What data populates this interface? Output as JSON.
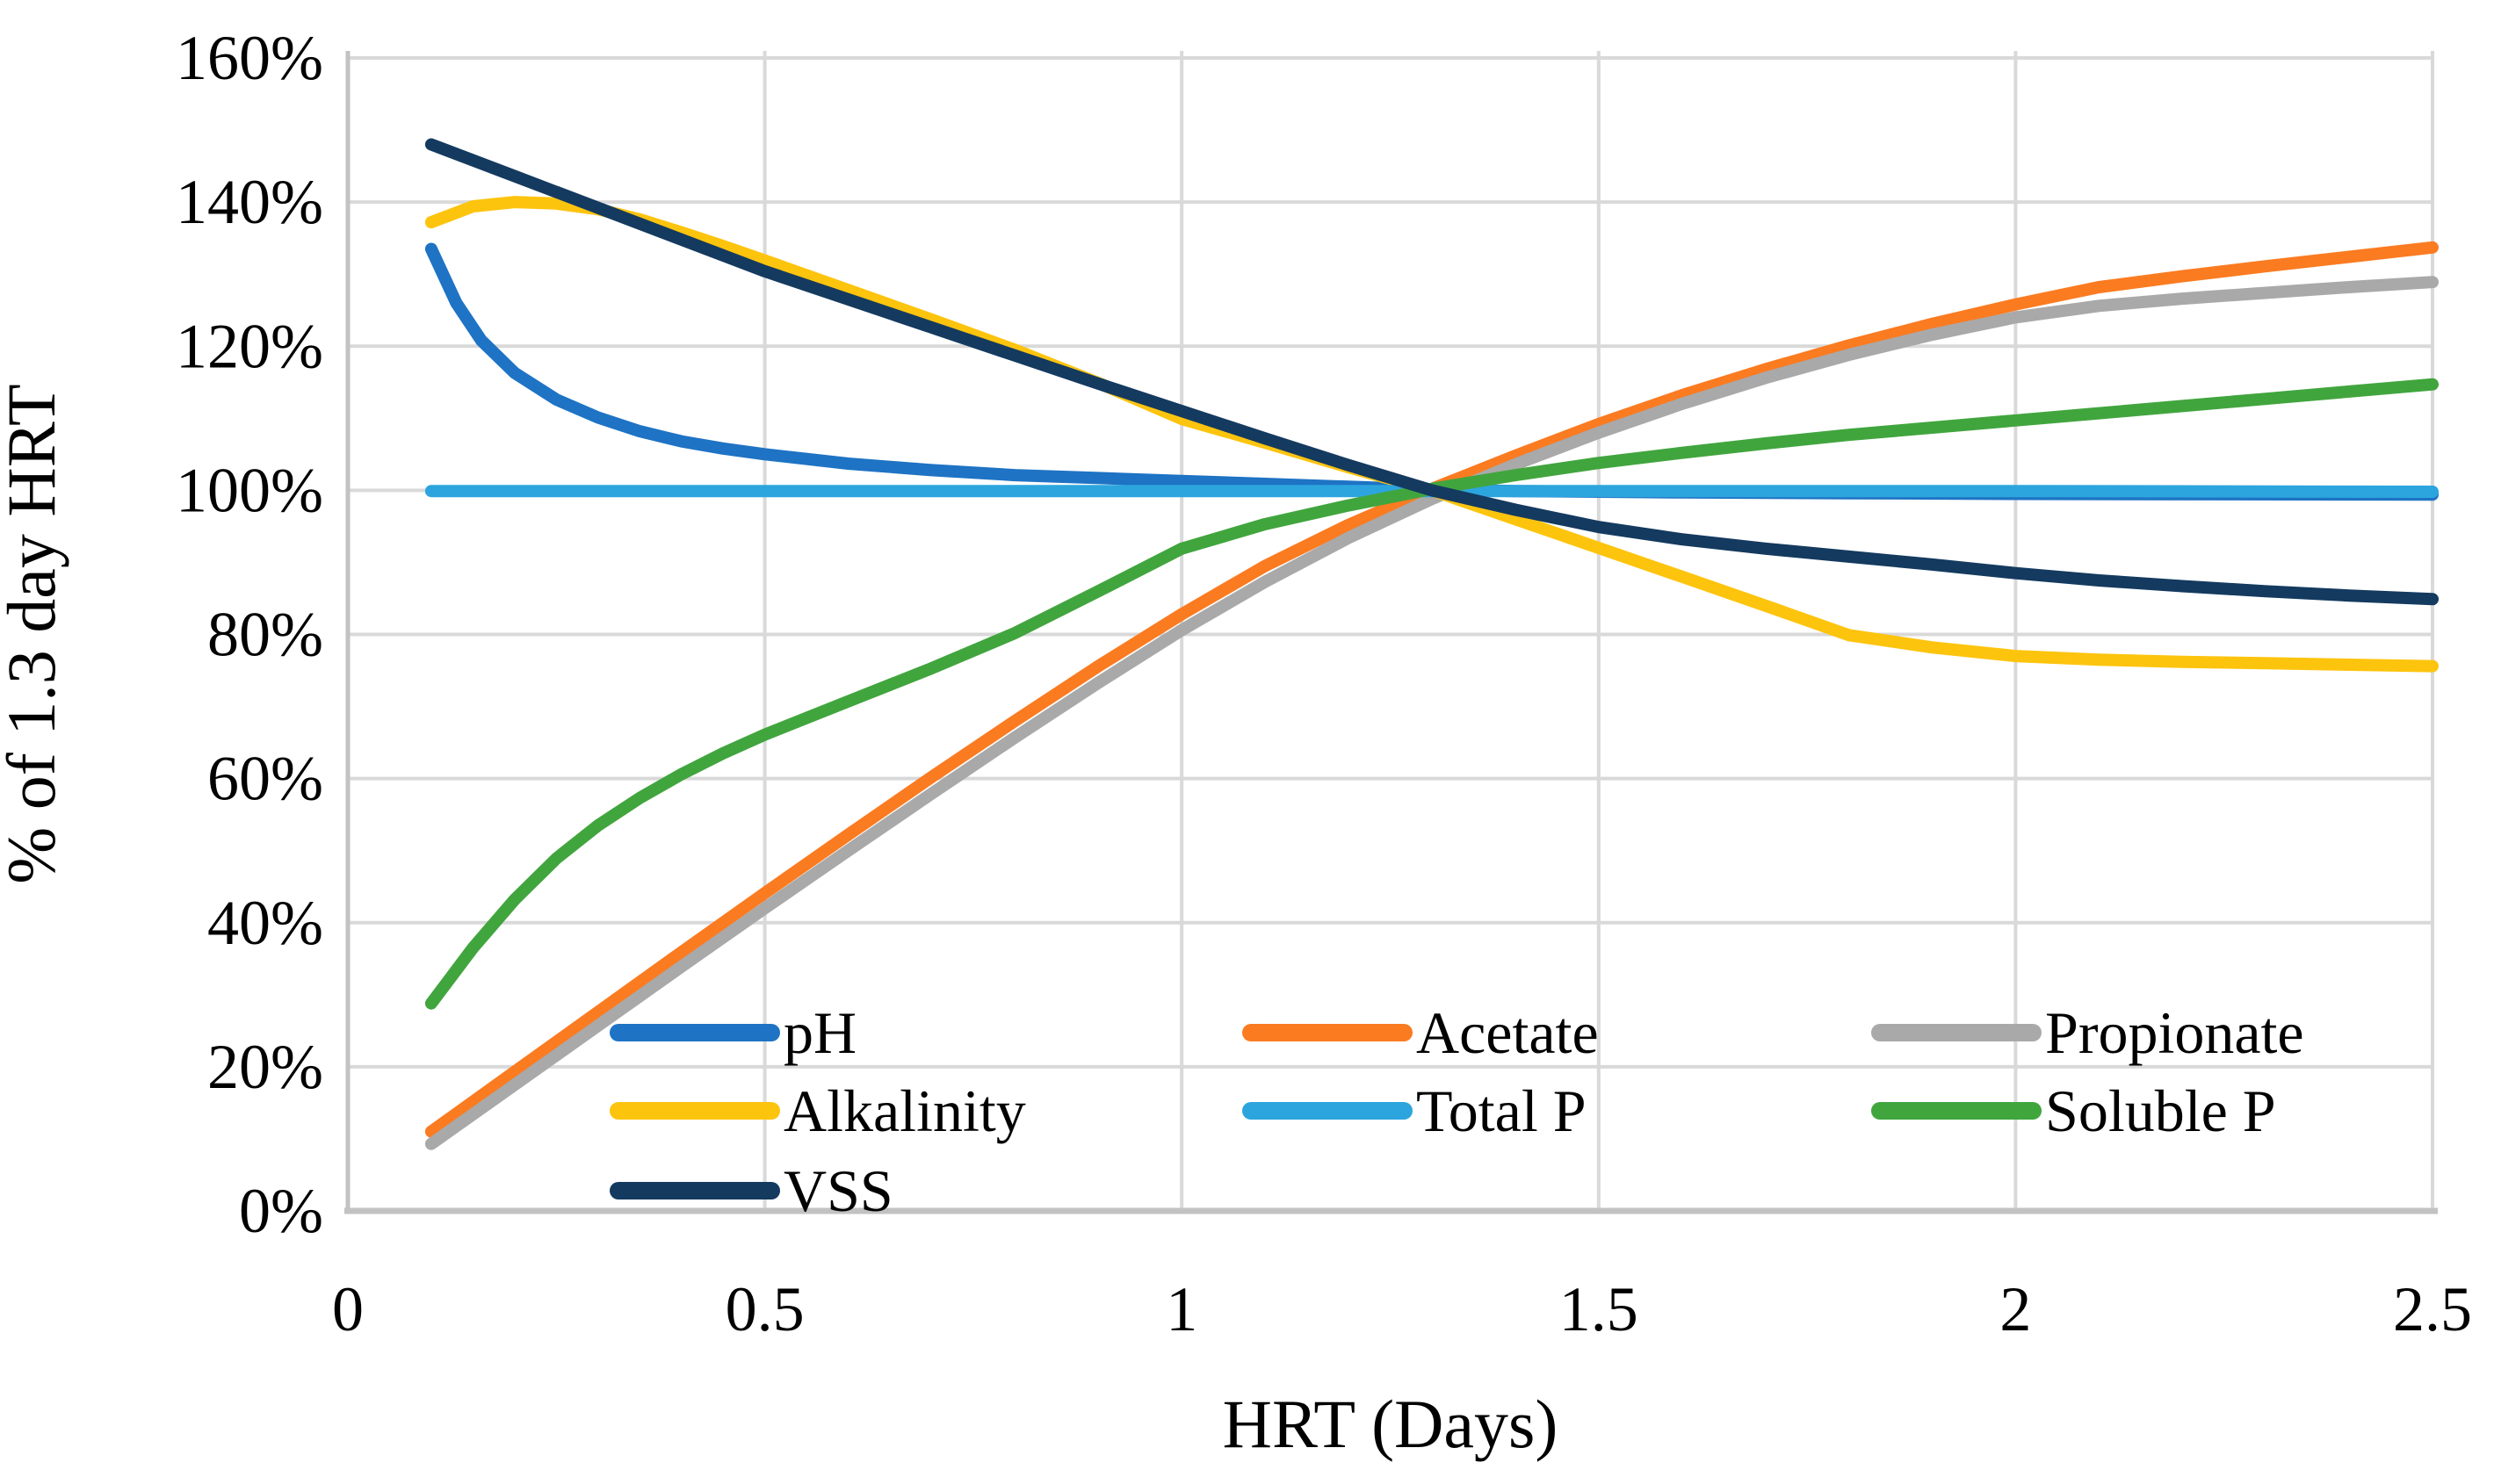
{
  "figure": {
    "background": "#FFFFFF",
    "grid_color": "#D9D9D9",
    "axis_line_color": "#C2C2C2",
    "text_color": "#000000"
  },
  "chart_data": {
    "type": "line",
    "title": "",
    "xlabel": "HRT (Days)",
    "ylabel": "% of 1.3 day HRT",
    "xlim": [
      0,
      2.5
    ],
    "ylim": [
      0,
      160
    ],
    "grid": true,
    "legend_position": "inside-bottom",
    "x_ticks": [
      0,
      0.5,
      1,
      1.5,
      2,
      2.5
    ],
    "x_tick_labels": [
      "0",
      "0.5",
      "1",
      "1.5",
      "2",
      "2.5"
    ],
    "y_ticks": [
      0,
      20,
      40,
      60,
      80,
      100,
      120,
      140,
      160
    ],
    "y_tick_labels": [
      "0%",
      "20%",
      "40%",
      "60%",
      "80%",
      "100%",
      "120%",
      "140%",
      "160%"
    ],
    "series": [
      {
        "name": "pH",
        "color": "#1E73C4",
        "points": [
          [
            0.1,
            133.5
          ],
          [
            0.13,
            126.0
          ],
          [
            0.16,
            120.8
          ],
          [
            0.2,
            116.3
          ],
          [
            0.25,
            112.6
          ],
          [
            0.3,
            110.1
          ],
          [
            0.35,
            108.2
          ],
          [
            0.4,
            106.8
          ],
          [
            0.45,
            105.8
          ],
          [
            0.5,
            105.0
          ],
          [
            0.6,
            103.7
          ],
          [
            0.7,
            102.8
          ],
          [
            0.8,
            102.1
          ],
          [
            0.9,
            101.7
          ],
          [
            1.0,
            101.3
          ],
          [
            1.1,
            100.9
          ],
          [
            1.2,
            100.5
          ],
          [
            1.3,
            100.1
          ],
          [
            1.4,
            99.9
          ],
          [
            1.6,
            99.7
          ],
          [
            1.8,
            99.6
          ],
          [
            2.0,
            99.5
          ],
          [
            2.25,
            99.45
          ],
          [
            2.5,
            99.4
          ]
        ]
      },
      {
        "name": "Acetate",
        "color": "#FB7B21",
        "points": [
          [
            0.1,
            11.0
          ],
          [
            0.2,
            19.3
          ],
          [
            0.3,
            27.6
          ],
          [
            0.4,
            35.9
          ],
          [
            0.5,
            44.1
          ],
          [
            0.6,
            52.2
          ],
          [
            0.7,
            60.2
          ],
          [
            0.8,
            68.0
          ],
          [
            0.9,
            75.6
          ],
          [
            1.0,
            82.8
          ],
          [
            1.1,
            89.5
          ],
          [
            1.2,
            95.2
          ],
          [
            1.3,
            100.2
          ],
          [
            1.4,
            104.8
          ],
          [
            1.5,
            109.2
          ],
          [
            1.6,
            113.2
          ],
          [
            1.7,
            116.8
          ],
          [
            1.8,
            120.1
          ],
          [
            1.9,
            123.1
          ],
          [
            2.0,
            125.8
          ],
          [
            2.1,
            128.2
          ],
          [
            2.2,
            129.7
          ],
          [
            2.3,
            131.1
          ],
          [
            2.4,
            132.4
          ],
          [
            2.5,
            133.7
          ]
        ]
      },
      {
        "name": "Propionate",
        "color": "#A9A9A9",
        "points": [
          [
            0.1,
            9.3
          ],
          [
            0.2,
            17.5
          ],
          [
            0.3,
            25.7
          ],
          [
            0.4,
            33.9
          ],
          [
            0.5,
            42.0
          ],
          [
            0.6,
            50.0
          ],
          [
            0.7,
            57.9
          ],
          [
            0.8,
            65.7
          ],
          [
            0.9,
            73.3
          ],
          [
            1.0,
            80.6
          ],
          [
            1.1,
            87.3
          ],
          [
            1.2,
            93.4
          ],
          [
            1.3,
            98.8
          ],
          [
            1.4,
            103.6
          ],
          [
            1.5,
            108.0
          ],
          [
            1.6,
            112.0
          ],
          [
            1.7,
            115.6
          ],
          [
            1.8,
            118.8
          ],
          [
            1.9,
            121.6
          ],
          [
            2.0,
            124.0
          ],
          [
            2.1,
            125.6
          ],
          [
            2.2,
            126.6
          ],
          [
            2.3,
            127.4
          ],
          [
            2.4,
            128.2
          ],
          [
            2.5,
            128.9
          ]
        ]
      },
      {
        "name": "Alkalinity",
        "color": "#FDC40E",
        "points": [
          [
            0.1,
            137.2
          ],
          [
            0.15,
            139.4
          ],
          [
            0.2,
            140.0
          ],
          [
            0.25,
            139.8
          ],
          [
            0.3,
            139.0
          ],
          [
            0.35,
            137.6
          ],
          [
            0.4,
            135.8
          ],
          [
            0.45,
            133.9
          ],
          [
            0.5,
            131.9
          ],
          [
            0.6,
            127.8
          ],
          [
            0.7,
            123.7
          ],
          [
            0.8,
            119.5
          ],
          [
            0.9,
            114.9
          ],
          [
            1.0,
            109.9
          ],
          [
            1.1,
            106.6
          ],
          [
            1.2,
            103.2
          ],
          [
            1.3,
            100.0
          ],
          [
            1.4,
            96.0
          ],
          [
            1.5,
            92.0
          ],
          [
            1.6,
            88.0
          ],
          [
            1.7,
            84.0
          ],
          [
            1.8,
            79.9
          ],
          [
            1.9,
            78.2
          ],
          [
            2.0,
            77.0
          ],
          [
            2.1,
            76.5
          ],
          [
            2.2,
            76.2
          ],
          [
            2.3,
            76.0
          ],
          [
            2.4,
            75.8
          ],
          [
            2.5,
            75.6
          ]
        ]
      },
      {
        "name": "Total P",
        "color": "#2CA5DE",
        "points": [
          [
            0.1,
            99.9
          ],
          [
            0.5,
            99.9
          ],
          [
            1.0,
            99.9
          ],
          [
            1.5,
            99.9
          ],
          [
            2.0,
            99.9
          ],
          [
            2.5,
            99.8
          ]
        ]
      },
      {
        "name": "Soluble P",
        "color": "#41A53E",
        "points": [
          [
            0.1,
            28.8
          ],
          [
            0.15,
            36.5
          ],
          [
            0.2,
            43.2
          ],
          [
            0.25,
            48.9
          ],
          [
            0.3,
            53.5
          ],
          [
            0.35,
            57.3
          ],
          [
            0.4,
            60.6
          ],
          [
            0.45,
            63.5
          ],
          [
            0.5,
            66.1
          ],
          [
            0.6,
            70.7
          ],
          [
            0.7,
            75.3
          ],
          [
            0.8,
            80.2
          ],
          [
            0.9,
            86.0
          ],
          [
            1.0,
            91.9
          ],
          [
            1.1,
            95.3
          ],
          [
            1.2,
            97.9
          ],
          [
            1.3,
            100.2
          ],
          [
            1.4,
            102.1
          ],
          [
            1.5,
            103.8
          ],
          [
            1.6,
            105.2
          ],
          [
            1.7,
            106.5
          ],
          [
            1.8,
            107.7
          ],
          [
            1.9,
            108.7
          ],
          [
            2.0,
            109.7
          ],
          [
            2.1,
            110.7
          ],
          [
            2.2,
            111.7
          ],
          [
            2.3,
            112.7
          ],
          [
            2.4,
            113.7
          ],
          [
            2.5,
            114.7
          ]
        ]
      },
      {
        "name": "VSS",
        "color": "#143A5F",
        "points": [
          [
            0.1,
            148.0
          ],
          [
            0.2,
            143.6
          ],
          [
            0.3,
            139.2
          ],
          [
            0.4,
            134.8
          ],
          [
            0.5,
            130.4
          ],
          [
            0.6,
            126.5
          ],
          [
            0.7,
            122.6
          ],
          [
            0.8,
            118.7
          ],
          [
            0.9,
            114.8
          ],
          [
            1.0,
            111.0
          ],
          [
            1.1,
            107.2
          ],
          [
            1.2,
            103.5
          ],
          [
            1.3,
            100.0
          ],
          [
            1.4,
            97.3
          ],
          [
            1.5,
            94.9
          ],
          [
            1.6,
            93.2
          ],
          [
            1.7,
            91.9
          ],
          [
            1.8,
            90.8
          ],
          [
            1.9,
            89.7
          ],
          [
            2.0,
            88.5
          ],
          [
            2.1,
            87.5
          ],
          [
            2.2,
            86.7
          ],
          [
            2.3,
            86.0
          ],
          [
            2.4,
            85.4
          ],
          [
            2.5,
            84.9
          ]
        ]
      }
    ],
    "legend": {
      "items": [
        {
          "label": "pH",
          "series": "pH",
          "row": 0,
          "col": 0
        },
        {
          "label": "Acetate",
          "series": "Acetate",
          "row": 0,
          "col": 1
        },
        {
          "label": "Propionate",
          "series": "Propionate",
          "row": 0,
          "col": 2
        },
        {
          "label": "Alkalinity",
          "series": "Alkalinity",
          "row": 1,
          "col": 0
        },
        {
          "label": "Total P",
          "series": "Total P",
          "row": 1,
          "col": 1
        },
        {
          "label": "Soluble P",
          "series": "Soluble P",
          "row": 1,
          "col": 2
        },
        {
          "label": "VSS",
          "series": "VSS",
          "row": 2,
          "col": 0
        }
      ]
    }
  }
}
